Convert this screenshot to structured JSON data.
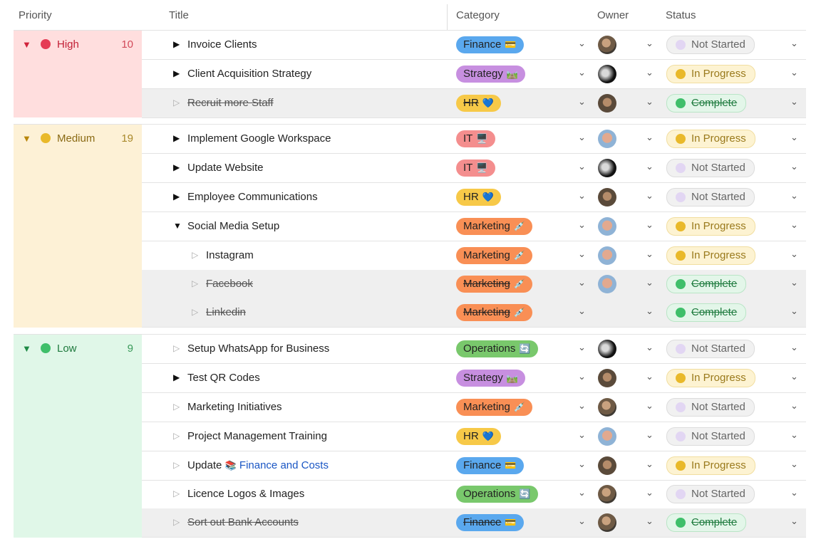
{
  "header": {
    "priority": "Priority",
    "title": "Title",
    "category": "Category",
    "owner": "Owner",
    "status": "Status"
  },
  "colors": {
    "high": "#ffdede",
    "medium": "#fdf1d6",
    "low": "#e0f7e8",
    "finance": "#5aa8ee",
    "strategy": "#c78fe0",
    "hr": "#f7c948",
    "it": "#f48e8e",
    "marketing": "#f98f55",
    "operations": "#79c86c"
  },
  "groups": [
    {
      "label": "High",
      "count": "10",
      "rows": [
        {
          "title": "Invoice Clients",
          "category": "Finance",
          "cat_icon": "💳",
          "owner": "avatar-photo",
          "status": "Not Started"
        },
        {
          "title": "Client Acquisition Strategy",
          "category": "Strategy",
          "cat_icon": "🛤️",
          "owner": "avatar-photo",
          "status": "In Progress"
        },
        {
          "title": "Recruit more Staff",
          "category": "HR",
          "cat_icon": "💙",
          "owner": "avatar-photo",
          "status": "Complete"
        }
      ]
    },
    {
      "label": "Medium",
      "count": "19",
      "rows": [
        {
          "title": "Implement Google Workspace",
          "category": "IT",
          "cat_icon": "🖥️",
          "owner": "avatar-photo",
          "status": "In Progress"
        },
        {
          "title": "Update Website",
          "category": "IT",
          "cat_icon": "🖥️",
          "owner": "avatar-photo",
          "status": "Not Started"
        },
        {
          "title": "Employee Communications",
          "category": "HR",
          "cat_icon": "💙",
          "owner": "avatar-photo",
          "status": "Not Started"
        },
        {
          "title": "Social Media Setup",
          "category": "Marketing",
          "cat_icon": "💉",
          "owner": "avatar-photo",
          "status": "In Progress"
        },
        {
          "title": "Instagram",
          "category": "Marketing",
          "cat_icon": "💉",
          "owner": "avatar-photo",
          "status": "In Progress"
        },
        {
          "title": "Facebook",
          "category": "Marketing",
          "cat_icon": "💉",
          "owner": "avatar-photo",
          "status": "Complete"
        },
        {
          "title": "Linkedin",
          "category": "Marketing",
          "cat_icon": "💉",
          "owner": "",
          "status": "Complete"
        }
      ]
    },
    {
      "label": "Low",
      "count": "9",
      "rows": [
        {
          "title": "Setup WhatsApp for Business",
          "category": "Operations",
          "cat_icon": "🔄",
          "owner": "avatar-photo",
          "status": "Not Started"
        },
        {
          "title": "Test QR Codes",
          "category": "Strategy",
          "cat_icon": "🛤️",
          "owner": "avatar-photo",
          "status": "In Progress"
        },
        {
          "title": "Marketing Initiatives",
          "category": "Marketing",
          "cat_icon": "💉",
          "owner": "avatar-photo",
          "status": "Not Started"
        },
        {
          "title": "Project Management Training",
          "category": "HR",
          "cat_icon": "💙",
          "owner": "avatar-photo",
          "status": "Not Started"
        },
        {
          "title": "Update",
          "title_icon": "📚",
          "title_link": "Finance and Costs",
          "category": "Finance",
          "cat_icon": "💳",
          "owner": "avatar-photo",
          "status": "In Progress"
        },
        {
          "title": "Licence Logos & Images",
          "category": "Operations",
          "cat_icon": "🔄",
          "owner": "avatar-photo",
          "status": "Not Started"
        },
        {
          "title": "Sort out Bank Accounts",
          "category": "Finance",
          "cat_icon": "💳",
          "owner": "avatar-photo",
          "status": "Complete"
        }
      ]
    }
  ]
}
